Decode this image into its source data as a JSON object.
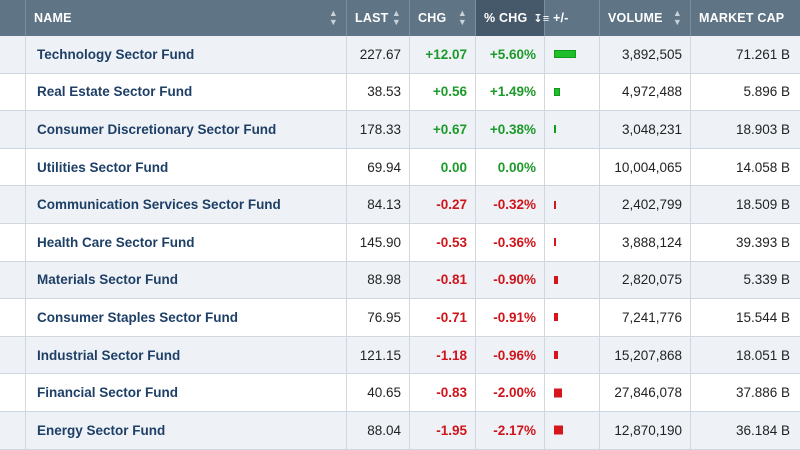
{
  "header": {
    "name": "NAME",
    "last": "LAST",
    "chg": "CHG",
    "pct_chg": "% CHG",
    "plus_minus": "+/-",
    "volume": "VOLUME",
    "market_cap": "MARKET CAP"
  },
  "rows": [
    {
      "name": "Technology Sector Fund",
      "last": "227.67",
      "chg": "+12.07",
      "pct": "+5.60%",
      "pct_value": 5.6,
      "volume": "3,892,505",
      "mcap": "71.261 B"
    },
    {
      "name": "Real Estate Sector Fund",
      "last": "38.53",
      "chg": "+0.56",
      "pct": "+1.49%",
      "pct_value": 1.49,
      "volume": "4,972,488",
      "mcap": "5.896 B"
    },
    {
      "name": "Consumer Discretionary Sector Fund",
      "last": "178.33",
      "chg": "+0.67",
      "pct": "+0.38%",
      "pct_value": 0.38,
      "volume": "3,048,231",
      "mcap": "18.903 B"
    },
    {
      "name": "Utilities Sector Fund",
      "last": "69.94",
      "chg": "0.00",
      "pct": "0.00%",
      "pct_value": 0.0,
      "volume": "10,004,065",
      "mcap": "14.058 B"
    },
    {
      "name": "Communication Services Sector Fund",
      "last": "84.13",
      "chg": "-0.27",
      "pct": "-0.32%",
      "pct_value": -0.32,
      "volume": "2,402,799",
      "mcap": "18.509 B"
    },
    {
      "name": "Health Care Sector Fund",
      "last": "145.90",
      "chg": "-0.53",
      "pct": "-0.36%",
      "pct_value": -0.36,
      "volume": "3,888,124",
      "mcap": "39.393 B"
    },
    {
      "name": "Materials Sector Fund",
      "last": "88.98",
      "chg": "-0.81",
      "pct": "-0.90%",
      "pct_value": -0.9,
      "volume": "2,820,075",
      "mcap": "5.339 B"
    },
    {
      "name": "Consumer Staples Sector Fund",
      "last": "76.95",
      "chg": "-0.71",
      "pct": "-0.91%",
      "pct_value": -0.91,
      "volume": "7,241,776",
      "mcap": "15.544 B"
    },
    {
      "name": "Industrial Sector Fund",
      "last": "121.15",
      "chg": "-1.18",
      "pct": "-0.96%",
      "pct_value": -0.96,
      "volume": "15,207,868",
      "mcap": "18.051 B"
    },
    {
      "name": "Financial Sector Fund",
      "last": "40.65",
      "chg": "-0.83",
      "pct": "-2.00%",
      "pct_value": -2.0,
      "volume": "27,846,078",
      "mcap": "37.886 B"
    },
    {
      "name": "Energy Sector Fund",
      "last": "88.04",
      "chg": "-1.95",
      "pct": "-2.17%",
      "pct_value": -2.17,
      "volume": "12,870,190",
      "mcap": "36.184 B"
    }
  ],
  "colors": {
    "header_bg": "#5f7485",
    "sorted_header_bg": "#46596a",
    "positive": "#1c9a2a",
    "negative": "#d0141a",
    "name_link": "#1e3f66",
    "alt_row_bg": "#eef2f7"
  },
  "icons": {
    "sortable": "sort-arrows-icon",
    "sorted_desc": "sort-descending-icon"
  }
}
